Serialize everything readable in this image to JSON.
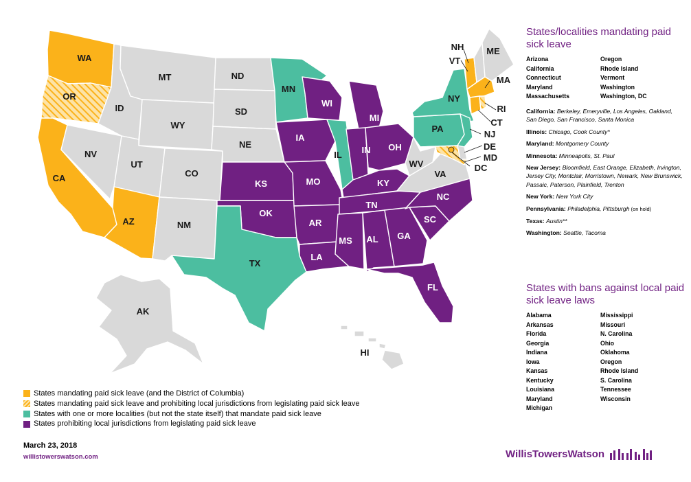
{
  "map": {
    "states": {
      "WA": {
        "label": "WA",
        "status": "mandate"
      },
      "OR": {
        "label": "OR",
        "status": "mandate_prohibit"
      },
      "CA": {
        "label": "CA",
        "status": "mandate"
      },
      "AZ": {
        "label": "AZ",
        "status": "mandate"
      },
      "NV": {
        "label": "NV",
        "status": "none"
      },
      "ID": {
        "label": "ID",
        "status": "none"
      },
      "MT": {
        "label": "MT",
        "status": "none"
      },
      "WY": {
        "label": "WY",
        "status": "none"
      },
      "UT": {
        "label": "UT",
        "status": "none"
      },
      "CO": {
        "label": "CO",
        "status": "none"
      },
      "NM": {
        "label": "NM",
        "status": "none"
      },
      "ND": {
        "label": "ND",
        "status": "none"
      },
      "SD": {
        "label": "SD",
        "status": "none"
      },
      "NE": {
        "label": "NE",
        "status": "none"
      },
      "KS": {
        "label": "KS",
        "status": "prohibit"
      },
      "OK": {
        "label": "OK",
        "status": "prohibit"
      },
      "TX": {
        "label": "TX",
        "status": "locality"
      },
      "MN": {
        "label": "MN",
        "status": "locality"
      },
      "IA": {
        "label": "IA",
        "status": "prohibit"
      },
      "MO": {
        "label": "MO",
        "status": "prohibit"
      },
      "AR": {
        "label": "AR",
        "status": "prohibit"
      },
      "LA": {
        "label": "LA",
        "status": "prohibit"
      },
      "WI": {
        "label": "WI",
        "status": "prohibit"
      },
      "IL": {
        "label": "IL",
        "status": "locality"
      },
      "MI": {
        "label": "MI",
        "status": "prohibit"
      },
      "IN": {
        "label": "IN",
        "status": "prohibit"
      },
      "OH": {
        "label": "OH",
        "status": "prohibit"
      },
      "KY": {
        "label": "KY",
        "status": "prohibit"
      },
      "TN": {
        "label": "TN",
        "status": "prohibit"
      },
      "MS": {
        "label": "MS",
        "status": "prohibit"
      },
      "AL": {
        "label": "AL",
        "status": "prohibit"
      },
      "GA": {
        "label": "GA",
        "status": "prohibit"
      },
      "FL": {
        "label": "FL",
        "status": "prohibit"
      },
      "SC": {
        "label": "SC",
        "status": "prohibit"
      },
      "NC": {
        "label": "NC",
        "status": "prohibit"
      },
      "VA": {
        "label": "VA",
        "status": "none"
      },
      "WV": {
        "label": "WV",
        "status": "none"
      },
      "PA": {
        "label": "PA",
        "status": "locality"
      },
      "NY": {
        "label": "NY",
        "status": "locality"
      },
      "VT": {
        "label": "VT",
        "status": "mandate"
      },
      "NH": {
        "label": "NH",
        "status": "none"
      },
      "ME": {
        "label": "ME",
        "status": "none"
      },
      "MA": {
        "label": "MA",
        "status": "mandate"
      },
      "RI": {
        "label": "RI",
        "status": "mandate_prohibit"
      },
      "CT": {
        "label": "CT",
        "status": "mandate"
      },
      "NJ": {
        "label": "NJ",
        "status": "locality"
      },
      "DE": {
        "label": "DE",
        "status": "none"
      },
      "MD": {
        "label": "MD",
        "status": "mandate_prohibit"
      },
      "DC": {
        "label": "DC",
        "status": "mandate"
      },
      "AK": {
        "label": "AK",
        "status": "none"
      },
      "HI": {
        "label": "HI",
        "status": "none"
      }
    },
    "colors": {
      "mandate": "#fbb21a",
      "locality": "#4cbea0",
      "prohibit": "#702082",
      "none": "#d9d9d9"
    }
  },
  "mandating": {
    "title": "States/localities mandating paid sick leave",
    "col1": [
      "Arizona",
      "California",
      "Connecticut",
      "Maryland",
      "Massachusetts"
    ],
    "col2": [
      "Oregon",
      "Rhode Island",
      "Vermont",
      "Washington",
      "Washington, DC"
    ],
    "localities": [
      {
        "state": "California:",
        "places": "Berkeley, Emeryville, Los Angeles, Oakland, San Diego, San Francisco, Santa Monica",
        "note": ""
      },
      {
        "state": "Illinois:",
        "places": "Chicago, Cook County*",
        "note": ""
      },
      {
        "state": "Maryland:",
        "places": "Montgomery County",
        "note": ""
      },
      {
        "state": "Minnesota:",
        "places": "Minneapolis, St. Paul",
        "note": ""
      },
      {
        "state": "New Jersey:",
        "places": "Bloomfield, East Orange, Elizabeth, Irvington, Jersey City, Montclair, Morristown, Newark, New Brunswick, Passaic, Paterson, Plainfield, Trenton",
        "note": ""
      },
      {
        "state": "New York:",
        "places": "New York City",
        "note": ""
      },
      {
        "state": "Pennsylvania:",
        "places": "Philadelphia, Pittsburgh",
        "note": "(on hold)"
      },
      {
        "state": "Texas:",
        "places": "Austin**",
        "note": ""
      },
      {
        "state": "Washington:",
        "places": "Seattle, Tacoma",
        "note": ""
      }
    ]
  },
  "bans": {
    "title": "States with bans against local paid sick leave laws",
    "col1": [
      "Alabama",
      "Arkansas",
      "Florida",
      "Georgia",
      "Indiana",
      "Iowa",
      "Kansas",
      "Kentucky",
      "Louisiana",
      "Maryland",
      "Michigan"
    ],
    "col2": [
      "Mississippi",
      "Missouri",
      "N. Carolina",
      "Ohio",
      "Oklahoma",
      "Oregon",
      "Rhode Island",
      "S. Carolina",
      "Tennessee",
      "Wisconsin"
    ]
  },
  "legend": [
    {
      "text": "States mandating paid sick leave (and the District of Columbia)",
      "swatch": "mandate"
    },
    {
      "text": "States mandating paid sick leave and prohibiting local jurisdictions from legislating paid sick leave",
      "swatch": "mandate_prohibit"
    },
    {
      "text": "States with one or more localities (but not the state itself) that mandate paid sick leave",
      "swatch": "locality"
    },
    {
      "text": "States prohibiting local jurisdictions from legislating paid sick leave",
      "swatch": "prohibit"
    }
  ],
  "footer": {
    "date": "March 23, 2018",
    "url": "willistowerswatson.com",
    "brand": "WillisTowersWatson"
  }
}
